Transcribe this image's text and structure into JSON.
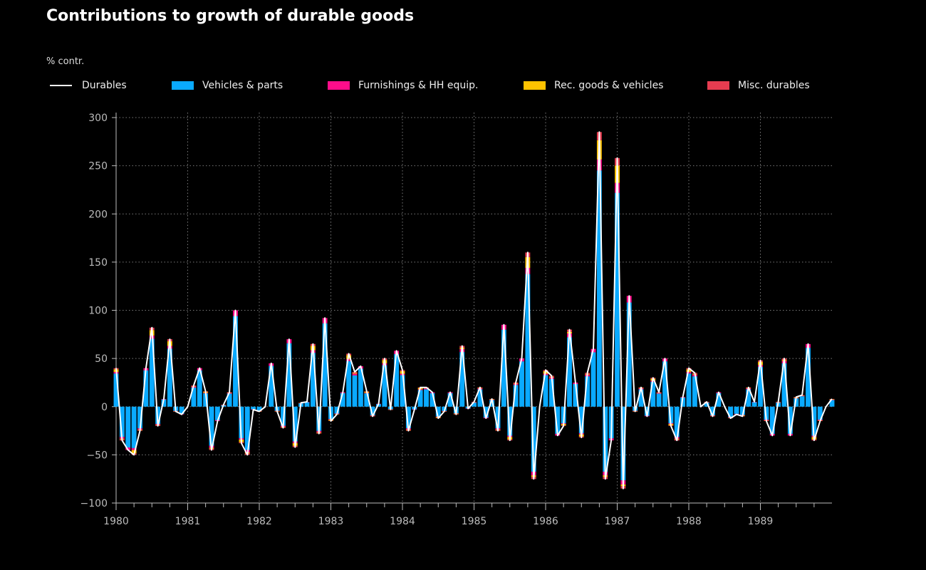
{
  "chart_data": {
    "type": "bar",
    "title": "Contributions to growth of durable goods",
    "unit_label": "% contr.",
    "start_year": 1980,
    "start_month": 1,
    "frequency": "monthly",
    "ylim": [
      -100,
      300
    ],
    "yticks": [
      -100,
      -50,
      0,
      50,
      100,
      150,
      200,
      250,
      300
    ],
    "ytick_labels": [
      "−100",
      "−50",
      "0",
      "50",
      "100",
      "150",
      "200",
      "250",
      "300"
    ],
    "xtick_labels": [
      "1980",
      "1981",
      "1982",
      "1983",
      "1984",
      "1985",
      "1986",
      "1987",
      "1988",
      "1989"
    ],
    "grid": true,
    "legend_position": "top",
    "series": [
      {
        "name": "Vehicles & parts",
        "color": "#0aaaff",
        "values": []
      },
      {
        "name": "Furnishings & HH equip.",
        "color": "#ff0d8a",
        "values": []
      },
      {
        "name": "Rec. goods & vehicles",
        "color": "#ffc300",
        "values": []
      },
      {
        "name": "Misc. durables",
        "color": "#e63c50",
        "values": []
      }
    ],
    "line": {
      "name": "Durables",
      "color": "#ffffff",
      "values": [
        40,
        -35,
        -45,
        -50,
        -25,
        40,
        82,
        -20,
        8,
        70,
        -5,
        -8,
        0,
        22,
        40,
        16,
        -45,
        -15,
        2,
        15,
        100,
        -38,
        -50,
        -3,
        -5,
        0,
        45,
        -5,
        -22,
        70,
        -42,
        4,
        5,
        65,
        -28,
        92,
        -15,
        -8,
        15,
        55,
        36,
        42,
        16,
        -10,
        3,
        50,
        -3,
        58,
        38,
        -25,
        -3,
        20,
        20,
        15,
        -12,
        -5,
        15,
        -8,
        63,
        -2,
        5,
        20,
        -12,
        8,
        -25,
        85,
        -35,
        25,
        50,
        160,
        -75,
        0,
        38,
        32,
        -30,
        -20,
        80,
        25,
        -32,
        35,
        60,
        285,
        -75,
        -35,
        258,
        -85,
        115,
        -5,
        20,
        -10,
        30,
        15,
        50,
        -20,
        -35,
        10,
        40,
        35,
        0,
        5,
        -10,
        15,
        0,
        -12,
        -8,
        -10,
        20,
        5,
        48,
        -15,
        -30,
        5,
        50,
        -30,
        10,
        12,
        65,
        -35,
        -15,
        0,
        8
      ],
      "components_note": ""
    }
  }
}
